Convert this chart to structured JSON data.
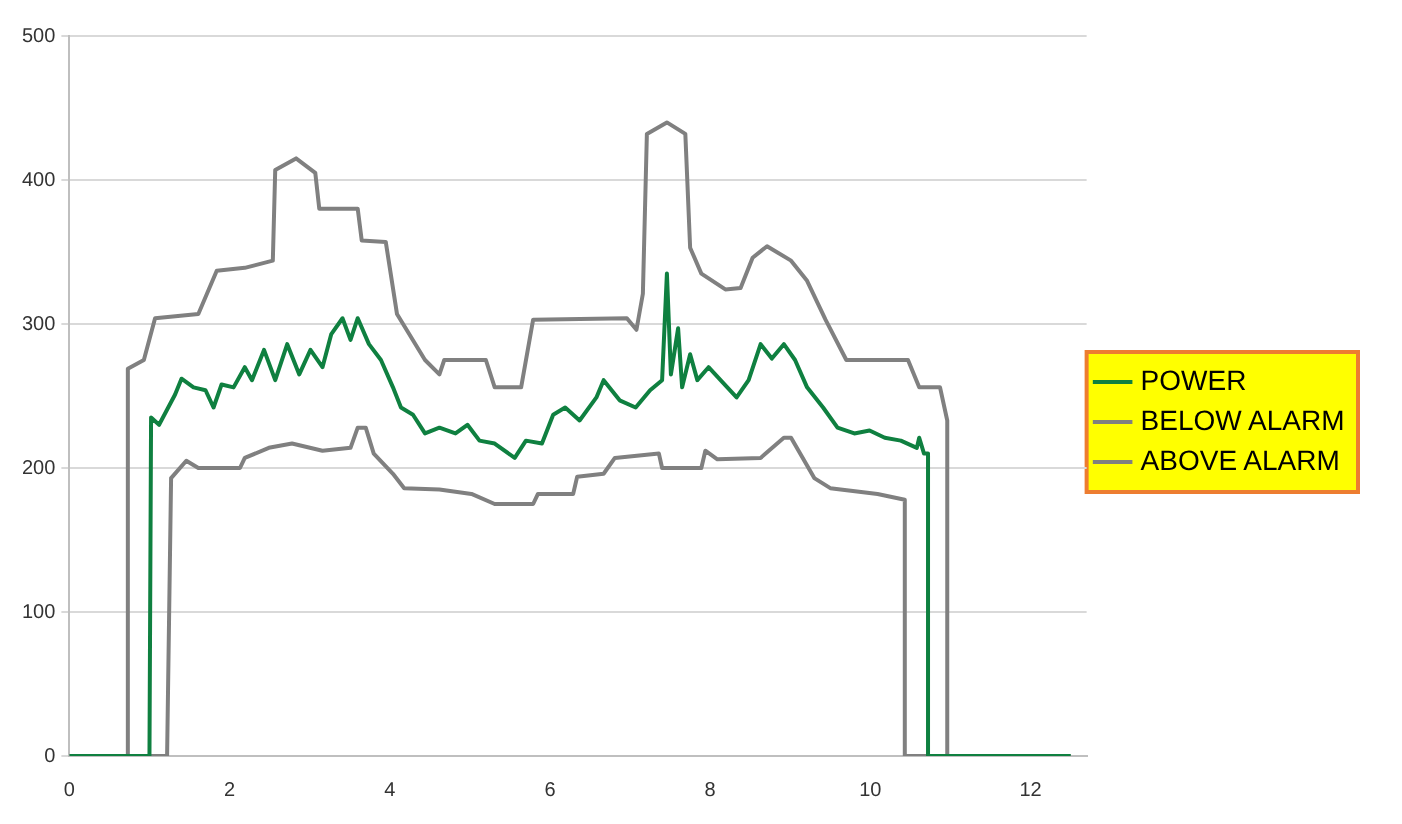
{
  "chart_data": {
    "type": "line",
    "xlim": [
      0,
      12.7
    ],
    "xticks": [
      0,
      2,
      4,
      6,
      8,
      10,
      12
    ],
    "ylim": [
      0,
      500
    ],
    "yticks": [
      0,
      100,
      200,
      300,
      400,
      500
    ],
    "grid": "y",
    "legend": "right",
    "marker": "none",
    "line_style": "solid",
    "series": [
      {
        "name": "POWER",
        "color": "#0f8040",
        "x": [
          0,
          1.0,
          1.02,
          1.12,
          1.32,
          1.4,
          1.55,
          1.7,
          1.8,
          1.9,
          2.05,
          2.19,
          2.28,
          2.43,
          2.57,
          2.72,
          2.87,
          3.01,
          3.16,
          3.27,
          3.41,
          3.51,
          3.6,
          3.74,
          3.89,
          4.04,
          4.14,
          4.29,
          4.44,
          4.62,
          4.82,
          4.97,
          5.12,
          5.31,
          5.56,
          5.7,
          5.9,
          6.04,
          6.19,
          6.37,
          6.58,
          6.67,
          6.87,
          7.07,
          7.25,
          7.4,
          7.46,
          7.51,
          7.6,
          7.65,
          7.75,
          7.84,
          7.98,
          8.13,
          8.33,
          8.48,
          8.63,
          8.77,
          8.92,
          9.06,
          9.21,
          9.41,
          9.59,
          9.8,
          9.99,
          10.18,
          10.38,
          10.58,
          10.61,
          10.67,
          10.72,
          10.72,
          12.5
        ],
        "values": [
          0,
          0,
          235,
          230,
          251,
          262,
          256,
          254,
          242,
          258,
          256,
          270,
          261,
          282,
          261,
          286,
          265,
          282,
          270,
          293,
          304,
          289,
          304,
          286,
          275,
          256,
          242,
          237,
          224,
          228,
          224,
          230,
          219,
          217,
          207,
          219,
          217,
          237,
          242,
          233,
          249,
          261,
          247,
          242,
          254,
          261,
          335,
          265,
          297,
          256,
          279,
          261,
          270,
          261,
          249,
          261,
          286,
          276,
          286,
          275,
          256,
          242,
          228,
          224,
          226,
          221,
          219,
          214,
          221,
          210,
          210,
          0,
          0
        ]
      },
      {
        "name": "BELOW ALARM",
        "color": "#808080",
        "x": [
          0,
          1.22,
          1.27,
          1.46,
          1.61,
          2.13,
          2.19,
          2.49,
          2.78,
          3.16,
          3.51,
          3.6,
          3.7,
          3.8,
          4.04,
          4.18,
          4.62,
          5.02,
          5.31,
          5.79,
          5.85,
          6.29,
          6.34,
          6.67,
          6.81,
          7.36,
          7.4,
          7.89,
          7.94,
          8.09,
          8.63,
          8.92,
          9.01,
          9.3,
          9.5,
          10.09,
          10.43,
          10.43,
          12.5
        ],
        "values": [
          0,
          0,
          193,
          205,
          200,
          200,
          207,
          214,
          217,
          212,
          214,
          228,
          228,
          210,
          196,
          186,
          185,
          182,
          175,
          175,
          182,
          182,
          194,
          196,
          207,
          210,
          200,
          200,
          212,
          206,
          207,
          221,
          221,
          193,
          186,
          182,
          178,
          0,
          0
        ]
      },
      {
        "name": "ABOVE ALARM",
        "color": "#808080",
        "x": [
          0,
          0.73,
          0.73,
          0.93,
          1.07,
          1.61,
          1.84,
          2.19,
          2.54,
          2.57,
          2.83,
          3.07,
          3.12,
          3.6,
          3.65,
          3.95,
          4.09,
          4.44,
          4.62,
          4.68,
          5.2,
          5.31,
          5.64,
          5.79,
          6.96,
          7.08,
          7.16,
          7.21,
          7.46,
          7.69,
          7.75,
          7.89,
          8.19,
          8.38,
          8.53,
          8.71,
          9.01,
          9.21,
          9.44,
          9.7,
          10.47,
          10.61,
          10.87,
          10.96,
          10.96,
          12.5
        ],
        "values": [
          0,
          0,
          269,
          275,
          304,
          307,
          337,
          339,
          344,
          407,
          415,
          405,
          380,
          380,
          358,
          357,
          307,
          275,
          265,
          275,
          275,
          256,
          256,
          303,
          304,
          296,
          321,
          432,
          440,
          432,
          353,
          335,
          324,
          325,
          346,
          354,
          344,
          330,
          303,
          275,
          275,
          256,
          256,
          233,
          0,
          0
        ]
      }
    ]
  }
}
